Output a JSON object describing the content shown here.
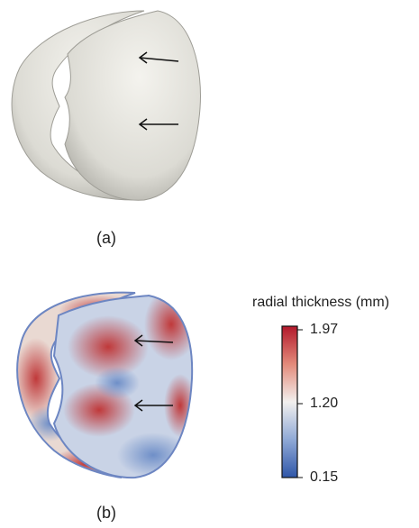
{
  "panels": [
    {
      "label": "(a)"
    },
    {
      "label": "(b)",
      "colorbar": {
        "title": "radial thickness (mm)",
        "ticks": [
          1.97,
          {
            "value": 1.2,
            "label": "1.20"
          },
          0.15
        ]
      }
    }
  ]
}
